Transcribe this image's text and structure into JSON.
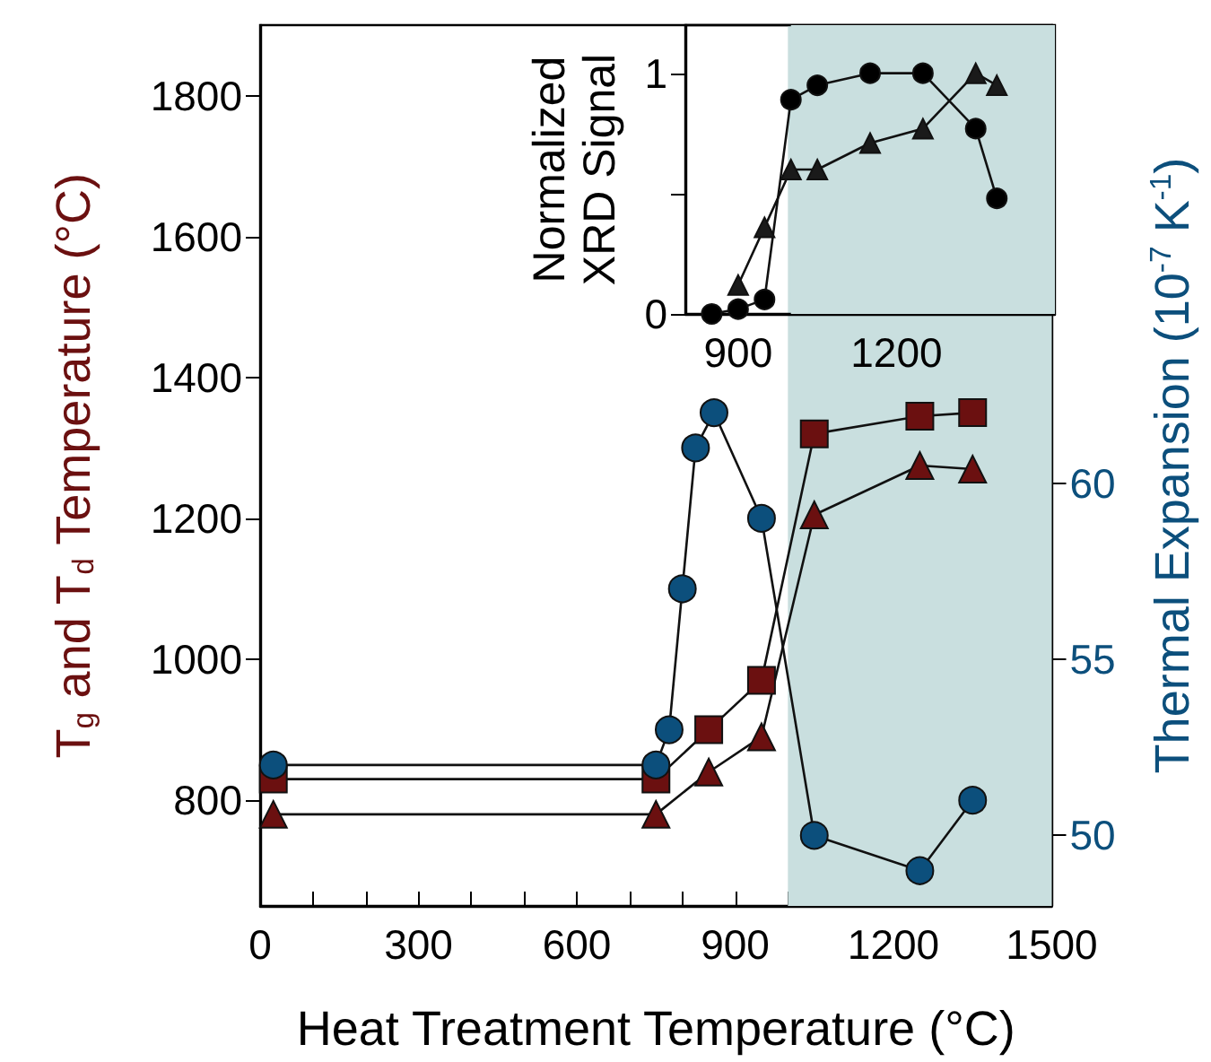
{
  "chart_data": [
    {
      "type": "line",
      "xlabel": "Heat Treatment Temperature (°C)",
      "ylabel": "T$_{g}$ and T$_{d}$ Temperature (°C)",
      "y2label": "Thermal Expansion (10$^{-7}$ K$^{-1}$)",
      "xlim": [
        0,
        1500
      ],
      "xticks": [
        0,
        {
          "value": 100,
          "label": null
        },
        {
          "value": 200,
          "label": null
        },
        300,
        {
          "value": 400,
          "label": null
        },
        {
          "value": 500,
          "label": null
        },
        600,
        {
          "value": 700,
          "label": null
        },
        {
          "value": 800,
          "label": null
        },
        900,
        {
          "value": 1000,
          "label": null
        },
        {
          "value": 1100,
          "label": null
        },
        1200,
        {
          "value": 1300,
          "label": null
        },
        {
          "value": 1400,
          "label": null
        },
        1500
      ],
      "ylim": [
        650,
        1900
      ],
      "yticks": [
        800,
        1000,
        1200,
        1400,
        1600,
        1800
      ],
      "y2lim": [
        48,
        73
      ],
      "y2ticks": [
        50,
        55,
        60
      ],
      "series": [
        {
          "color": "#6b1010",
          "marker": "square",
          "x": [
            25,
            750,
            850,
            950,
            1050,
            1250,
            1350
          ],
          "values": [
            830,
            830,
            900,
            970,
            1320,
            1345,
            1350
          ]
        },
        {
          "color": "#6b1010",
          "marker": "triangle",
          "x": [
            25,
            750,
            850,
            950,
            1050,
            1250,
            1350
          ],
          "values": [
            780,
            780,
            840,
            890,
            1205,
            1275,
            1270
          ]
        },
        {
          "color": "#0c4f7c",
          "marker": "circle",
          "axis": "y2",
          "x": [
            25,
            750,
            775,
            800,
            825,
            860,
            950,
            1050,
            1250,
            1350
          ],
          "values": [
            52,
            52,
            53,
            57,
            61,
            62,
            59,
            50,
            49,
            51
          ]
        }
      ],
      "bands": [
        {
          "axis": "x",
          "from": 1000,
          "to": 1500,
          "color": "#c9dfdf"
        }
      ]
    },
    {
      "type": "line",
      "ylabel": "Normalized\nXRD Signal",
      "xlim": [
        800,
        1500
      ],
      "xticks": [
        900,
        {
          "value": 1000,
          "label": null
        },
        {
          "value": 1100,
          "label": null
        },
        1200,
        {
          "value": 1300,
          "label": null
        },
        {
          "value": 1400,
          "label": null
        }
      ],
      "ylim": [
        0,
        1.2
      ],
      "yticks": [
        0,
        {
          "value": 0.5,
          "label": null
        },
        1
      ],
      "series": [
        {
          "color": "#000000",
          "marker": "circle",
          "x": [
            850,
            900,
            950,
            1000,
            1050,
            1150,
            1250,
            1350,
            1390
          ],
          "values": [
            0,
            0.02,
            0.06,
            0.89,
            0.95,
            1.0,
            1.0,
            0.77,
            0.48
          ]
        },
        {
          "color": "#1a1a1a",
          "marker": "triangle",
          "x": [
            900,
            950,
            1000,
            1050,
            1150,
            1250,
            1350,
            1390
          ],
          "values": [
            0.12,
            0.36,
            0.6,
            0.6,
            0.71,
            0.77,
            1.0,
            0.95
          ]
        }
      ],
      "bands": [
        {
          "axis": "x",
          "from": 1000,
          "to": 1500,
          "color": "#c9dfdf"
        }
      ]
    }
  ]
}
